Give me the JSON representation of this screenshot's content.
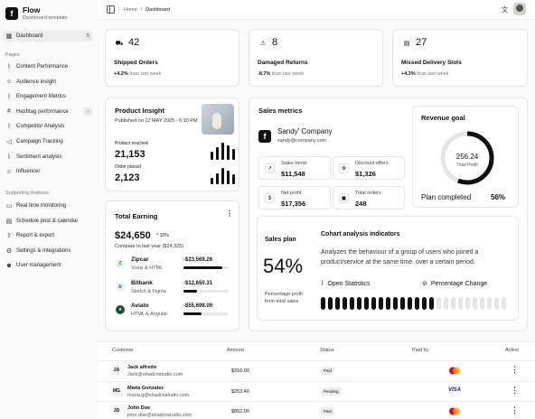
{
  "brand": {
    "name": "Flow",
    "subtitle": "Dashboard template"
  },
  "sidebar": {
    "dashboard": {
      "label": "Dashboard",
      "badge": "5"
    },
    "pages_label": "Pages",
    "pages": [
      {
        "label": "Content Performance",
        "icon": "chart-icon"
      },
      {
        "label": "Audience insight",
        "icon": "users-icon"
      },
      {
        "label": "Engagement Metrics",
        "icon": "chart-icon"
      },
      {
        "label": "Hashtag performance",
        "icon": "hash-icon",
        "chevron": true
      },
      {
        "label": "Competitor Analysis",
        "icon": "chart-icon"
      },
      {
        "label": "Campaign Tracking",
        "icon": "megaphone-icon"
      },
      {
        "label": "Sentiment analysis",
        "icon": "chart-icon"
      },
      {
        "label": "Influencer",
        "icon": "users-icon"
      }
    ],
    "features_label": "Supporting features",
    "features": [
      {
        "label": "Real time monitoring",
        "icon": "monitor-icon"
      },
      {
        "label": "Schedule post & calendar",
        "icon": "calendar-icon"
      },
      {
        "label": "Report & export",
        "icon": "export-icon"
      },
      {
        "label": "Settings & Integrations",
        "icon": "gear-icon"
      },
      {
        "label": "User management",
        "icon": "user-icon"
      }
    ]
  },
  "breadcrumb": {
    "home": "Home",
    "sep": "/",
    "current": "Dashboard"
  },
  "stats": [
    {
      "icon": "truck-icon",
      "value": "42",
      "label": "Shipped Orders",
      "delta": "+4.2%",
      "suffix": "than last week"
    },
    {
      "icon": "warning-icon",
      "value": "8",
      "label": "Damaged Returns",
      "delta": "-8.7%",
      "suffix": "than last week"
    },
    {
      "icon": "calendar-icon",
      "value": "27",
      "label": "Missed Delivery Slots",
      "delta": "+4.3%",
      "suffix": "than last week"
    }
  ],
  "insight": {
    "title": "Product Insight",
    "published": "Published on 12 MAY 2025 - 6:10 PM",
    "reached_label": "Product reached",
    "reached": "21,153",
    "placed_label": "Order placed",
    "placed": "2,123",
    "bars1": [
      0.45,
      0.7,
      0.95,
      0.8,
      0.6
    ],
    "bars2": [
      0.35,
      0.6,
      0.9,
      0.75,
      0.55
    ]
  },
  "earning": {
    "title": "Total Earning",
    "value": "$24,650",
    "delta": "10%",
    "compare": "Compare to last year ($24,325)",
    "items": [
      {
        "name": "Zipcar",
        "sub": "Vuejs & HTML",
        "value": "-$23,569.26",
        "progress": 0.85,
        "icon": "Z",
        "bg": "#e6f4ea",
        "fg": "#1e8e3e"
      },
      {
        "name": "Bitbank",
        "sub": "Sketch & Figma",
        "value": "-$12,650.31",
        "progress": 0.3,
        "icon": "b",
        "bg": "#e8f0fe",
        "fg": "#1a4fa0"
      },
      {
        "name": "Aviato",
        "sub": "HTML & Angular",
        "value": "-$55,699.00",
        "progress": 0.4,
        "icon": "●",
        "bg": "#1f5132",
        "fg": "#fff"
      }
    ]
  },
  "sales": {
    "title": "Sales metrics",
    "company": "Sandy' Company",
    "email": "sandy@company.com",
    "metrics": [
      {
        "icon": "trend-icon",
        "label": "Sales trend",
        "value": "$11,548"
      },
      {
        "icon": "discount-icon",
        "label": "Discount offers",
        "value": "$1,326"
      },
      {
        "icon": "dollar-icon",
        "label": "Net profit",
        "value": "$17,356"
      },
      {
        "icon": "cart-icon",
        "label": "Total orders",
        "value": "248"
      }
    ],
    "goal": {
      "title": "Revenue goal",
      "value": "256.24",
      "label": "Total Profit",
      "completed_label": "Plan completed",
      "percent": "56%",
      "fraction": 0.56
    },
    "plan": {
      "title": "Sales plan",
      "percent": "54%",
      "desc": "Percentage profit from total sales"
    },
    "cohort": {
      "title": "Cohart analysis indicators",
      "desc": "Analyzes the behaviour of a group of users who joined a product/service at the same time. over a certain period.",
      "open": "Open Statistics",
      "change": "Percentage Change",
      "filled": 16,
      "total": 26
    }
  },
  "table": {
    "headers": {
      "customer": "Customer",
      "amount": "Amount",
      "status": "Status",
      "paid": "Paid by",
      "action": "Action"
    },
    "rows": [
      {
        "name": "Jack alfredo",
        "email": "Jack@shadcnstudio.com",
        "amount": "$316.00",
        "status": "Paid",
        "paid": "mastercard",
        "initials": "JA"
      },
      {
        "name": "Maria Gonzalez",
        "email": "maria.g@shadcnstudio.com",
        "amount": "$253.40",
        "status": "Pending",
        "paid": "VISA",
        "initials": "MG"
      },
      {
        "name": "John Doe",
        "email": "john.doe@shadcnstudio.com",
        "amount": "$852.00",
        "status": "Paid",
        "paid": "mastercard",
        "initials": "JD"
      }
    ]
  }
}
